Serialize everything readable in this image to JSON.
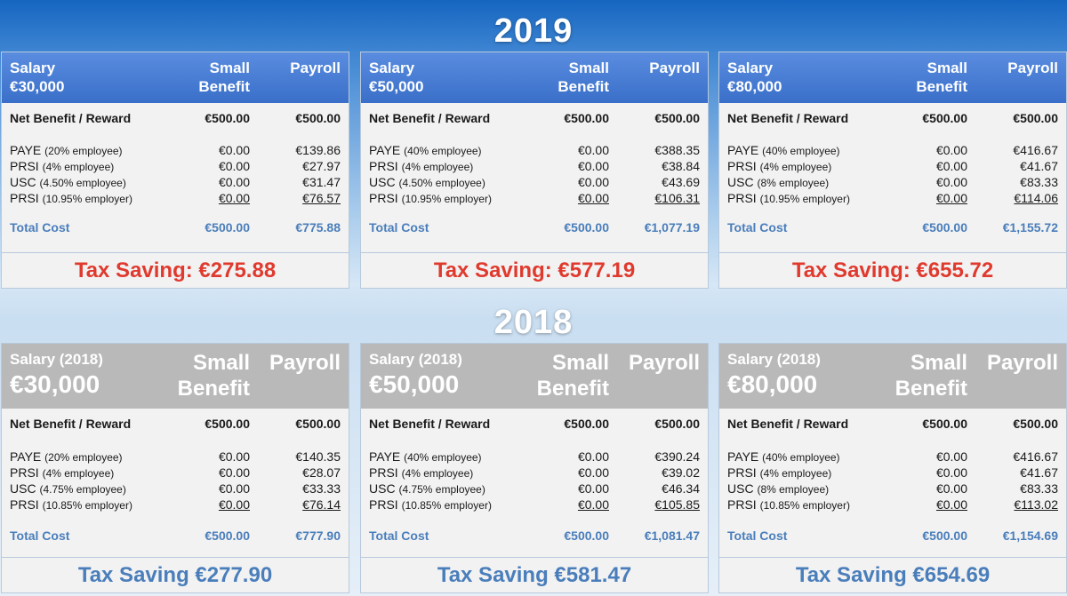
{
  "y2019": {
    "title": "2019",
    "cards": [
      {
        "salary_label": "Salary",
        "salary_amount": "€30,000",
        "col_small": [
          "Small",
          "Benefit"
        ],
        "col_payroll": "Payroll",
        "net_label": "Net Benefit / Reward",
        "net_small": "€500.00",
        "net_payroll": "€500.00",
        "rows": [
          {
            "name": "PAYE",
            "note": "(20% employee)",
            "small": "€0.00",
            "payroll": "€139.86"
          },
          {
            "name": "PRSI",
            "note": "(4% employee)",
            "small": "€0.00",
            "payroll": "€27.97"
          },
          {
            "name": "USC",
            "note": "(4.50% employee)",
            "small": "€0.00",
            "payroll": "€31.47"
          },
          {
            "name": "PRSI",
            "note": "(10.95% employer)",
            "small": "€0.00",
            "payroll": "€76.57"
          }
        ],
        "total_label": "Total Cost",
        "total_small": "€500.00",
        "total_payroll": "€775.88",
        "saving": "Tax Saving: €275.88"
      },
      {
        "salary_label": "Salary",
        "salary_amount": "€50,000",
        "col_small": [
          "Small",
          "Benefit"
        ],
        "col_payroll": "Payroll",
        "net_label": "Net Benefit / Reward",
        "net_small": "€500.00",
        "net_payroll": "€500.00",
        "rows": [
          {
            "name": "PAYE",
            "note": "(40% employee)",
            "small": "€0.00",
            "payroll": "€388.35"
          },
          {
            "name": "PRSI",
            "note": "(4% employee)",
            "small": "€0.00",
            "payroll": "€38.84"
          },
          {
            "name": "USC",
            "note": "(4.50% employee)",
            "small": "€0.00",
            "payroll": "€43.69"
          },
          {
            "name": "PRSI",
            "note": "(10.95% employer)",
            "small": "€0.00",
            "payroll": "€106.31"
          }
        ],
        "total_label": "Total Cost",
        "total_small": "€500.00",
        "total_payroll": "€1,077.19",
        "saving": "Tax Saving: €577.19"
      },
      {
        "salary_label": "Salary",
        "salary_amount": "€80,000",
        "col_small": [
          "Small",
          "Benefit"
        ],
        "col_payroll": "Payroll",
        "net_label": "Net Benefit / Reward",
        "net_small": "€500.00",
        "net_payroll": "€500.00",
        "rows": [
          {
            "name": "PAYE",
            "note": "(40% employee)",
            "small": "€0.00",
            "payroll": "€416.67"
          },
          {
            "name": "PRSI",
            "note": "(4% employee)",
            "small": "€0.00",
            "payroll": "€41.67"
          },
          {
            "name": "USC",
            "note": "(8% employee)",
            "small": "€0.00",
            "payroll": "€83.33"
          },
          {
            "name": "PRSI",
            "note": "(10.95% employer)",
            "small": "€0.00",
            "payroll": "€114.06"
          }
        ],
        "total_label": "Total Cost",
        "total_small": "€500.00",
        "total_payroll": "€1,155.72",
        "saving": "Tax Saving: €655.72"
      }
    ]
  },
  "y2018": {
    "title": "2018",
    "cards": [
      {
        "salary_label": "Salary (2018)",
        "salary_amount": "€30,000",
        "col_small": [
          "Small",
          "Benefit"
        ],
        "col_payroll": "Payroll",
        "net_label": "Net Benefit / Reward",
        "net_small": "€500.00",
        "net_payroll": "€500.00",
        "rows": [
          {
            "name": "PAYE",
            "note": "(20% employee)",
            "small": "€0.00",
            "payroll": "€140.35"
          },
          {
            "name": "PRSI",
            "note": "(4% employee)",
            "small": "€0.00",
            "payroll": "€28.07"
          },
          {
            "name": "USC",
            "note": "(4.75% employee)",
            "small": "€0.00",
            "payroll": "€33.33"
          },
          {
            "name": "PRSI",
            "note": "(10.85% employer)",
            "small": "€0.00",
            "payroll": "€76.14"
          }
        ],
        "total_label": "Total Cost",
        "total_small": "€500.00",
        "total_payroll": "€777.90",
        "saving": "Tax Saving €277.90"
      },
      {
        "salary_label": "Salary (2018)",
        "salary_amount": "€50,000",
        "col_small": [
          "Small",
          "Benefit"
        ],
        "col_payroll": "Payroll",
        "net_label": "Net Benefit / Reward",
        "net_small": "€500.00",
        "net_payroll": "€500.00",
        "rows": [
          {
            "name": "PAYE",
            "note": "(40% employee)",
            "small": "€0.00",
            "payroll": "€390.24"
          },
          {
            "name": "PRSI",
            "note": "(4% employee)",
            "small": "€0.00",
            "payroll": "€39.02"
          },
          {
            "name": "USC",
            "note": "(4.75% employee)",
            "small": "€0.00",
            "payroll": "€46.34"
          },
          {
            "name": "PRSI",
            "note": "(10.85% employer)",
            "small": "€0.00",
            "payroll": "€105.85"
          }
        ],
        "total_label": "Total Cost",
        "total_small": "€500.00",
        "total_payroll": "€1,081.47",
        "saving": "Tax Saving €581.47"
      },
      {
        "salary_label": "Salary (2018)",
        "salary_amount": "€80,000",
        "col_small": [
          "Small",
          "Benefit"
        ],
        "col_payroll": "Payroll",
        "net_label": "Net Benefit / Reward",
        "net_small": "€500.00",
        "net_payroll": "€500.00",
        "rows": [
          {
            "name": "PAYE",
            "note": "(40% employee)",
            "small": "€0.00",
            "payroll": "€416.67"
          },
          {
            "name": "PRSI",
            "note": "(4% employee)",
            "small": "€0.00",
            "payroll": "€41.67"
          },
          {
            "name": "USC",
            "note": "(8% employee)",
            "small": "€0.00",
            "payroll": "€83.33"
          },
          {
            "name": "PRSI",
            "note": "(10.85% employer)",
            "small": "€0.00",
            "payroll": "€113.02"
          }
        ],
        "total_label": "Total Cost",
        "total_small": "€500.00",
        "total_payroll": "€1,154.69",
        "saving": "Tax Saving €654.69"
      }
    ]
  }
}
